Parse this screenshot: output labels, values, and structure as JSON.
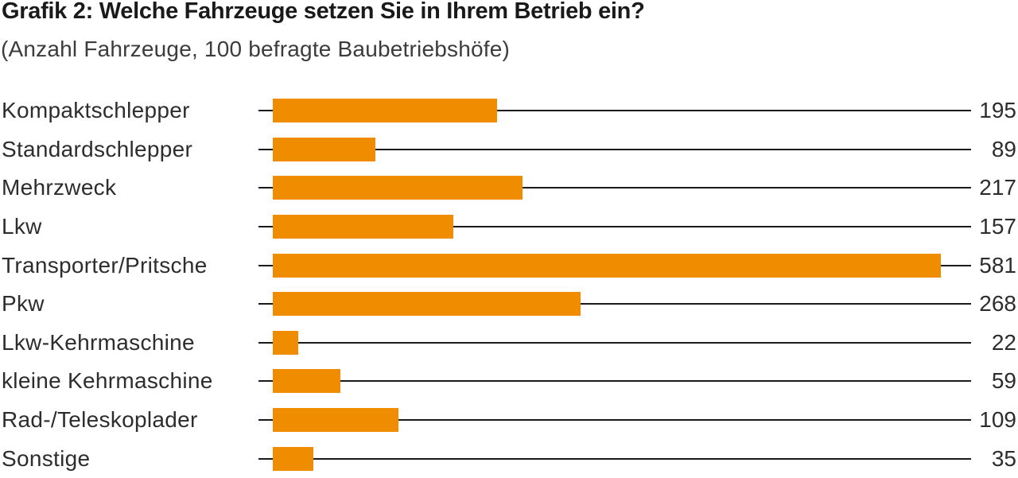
{
  "header": {
    "title": "Grafik 2: Welche Fahrzeuge setzen Sie in Ihrem Betrieb ein?",
    "subtitle": "(Anzahl Fahrzeuge, 100 befragte Baubetriebshöfe)"
  },
  "colors": {
    "background": "#FFFFFF",
    "bar": "#F08C00",
    "line": "#1A1A1A",
    "title_text": "#1A1A1A",
    "body_text": "#2D2D2D"
  },
  "chart_data": {
    "type": "bar",
    "orientation": "horizontal",
    "title": "Grafik 2: Welche Fahrzeuge setzen Sie in Ihrem Betrieb ein?",
    "subtitle": "(Anzahl Fahrzeuge, 100 befragte Baubetriebshöfe)",
    "unit": "Anzahl Fahrzeuge",
    "sample_note": "100 befragte Baubetriebshöfe",
    "categories": [
      "Kompaktschlepper",
      "Standardschlepper",
      "Mehrzweck",
      "Lkw",
      "Transporter/Pritsche",
      "Pkw",
      "Lkw-Kehrmaschine",
      "kleine Kehrmaschine",
      "Rad-/Teleskoplader",
      "Sonstige"
    ],
    "values": [
      195,
      89,
      217,
      157,
      581,
      268,
      22,
      59,
      109,
      35
    ],
    "value_labels": [
      "195",
      "89",
      "217",
      "157",
      "581",
      "268",
      "22",
      "59",
      "109",
      "35"
    ],
    "xlim": [
      0,
      581
    ],
    "grid": false,
    "legend": false,
    "bar_color": "#F08C00",
    "leader_lines": true,
    "value_label_position": "right-aligned-after-leader-line"
  }
}
